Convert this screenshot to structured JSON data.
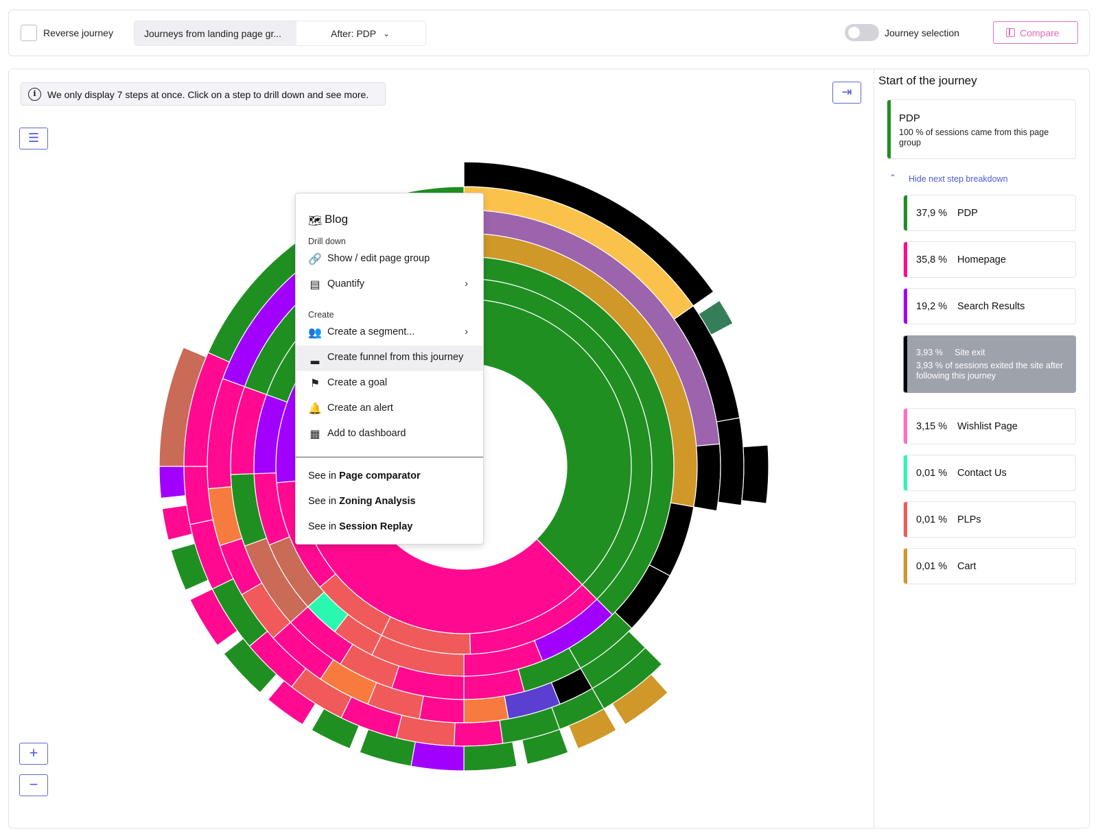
{
  "topbar": {
    "reverse_label": "Reverse journey",
    "journey_source": "Journeys from landing page gr...",
    "after_label": "After: PDP",
    "journey_selection_label": "Journey selection",
    "compare_label": "Compare"
  },
  "main": {
    "notice": "We only display 7 steps at once. Click on a step to drill down and see more.",
    "collapse_icon": "collapse-right-icon",
    "list_icon": "list-icon",
    "zoom_in": "+",
    "zoom_out": "−"
  },
  "menu": {
    "title": "Blog",
    "title_icon": "map-icon",
    "drill_down_label": "Drill down",
    "show_edit": "Show / edit page group",
    "quantify": "Quantify",
    "create_label": "Create",
    "create_segment": "Create a segment...",
    "create_funnel": "Create funnel from this journey",
    "create_goal": "Create a goal",
    "create_alert": "Create an alert",
    "add_dashboard": "Add to dashboard",
    "see_in": "See in",
    "page_comparator": "Page comparator",
    "zoning_analysis": "Zoning Analysis",
    "session_replay": "Session Replay"
  },
  "panel": {
    "title": "Start of the journey",
    "start": {
      "name": "PDP",
      "desc": "100 % of sessions came from this page group",
      "color": "#208f22"
    },
    "hide_label": "Hide next step breakdown",
    "steps": [
      {
        "pct": "37,9 %",
        "name": "PDP",
        "color": "#208f22"
      },
      {
        "pct": "35,8 %",
        "name": "Homepage",
        "color": "#ff0a90"
      },
      {
        "pct": "19,2 %",
        "name": "Search Results",
        "color": "#a100ff"
      },
      {
        "pct": "3,93 %",
        "name": "Site exit",
        "color": "#000000",
        "sub": "3,93 % of sessions exited the site after following this journey"
      },
      {
        "pct": "3,15 %",
        "name": "Wishlist Page",
        "color": "#ff6ec4"
      },
      {
        "pct": "0,01 %",
        "name": "Contact Us",
        "color": "#2bf8b0"
      },
      {
        "pct": "0,01 %",
        "name": "PLPs",
        "color": "#f05a5a"
      },
      {
        "pct": "0,01 %",
        "name": "Cart",
        "color": "#cf9829"
      }
    ]
  },
  "colors": {
    "pdp": "#208f22",
    "homepage": "#ff0a90",
    "search": "#a100ff",
    "exit": "#000000",
    "wishlist": "#ff6ec4",
    "contact": "#2bf8b0",
    "plp": "#f05a5a",
    "cart": "#cf9829",
    "checkout": "#fbc24b",
    "account": "#9c64ad",
    "blog": "#c96b56",
    "orange": "#f77b3e",
    "indigo": "#5a3fd0",
    "teal": "#347f5a",
    "accent": "#4a5bd4"
  }
}
